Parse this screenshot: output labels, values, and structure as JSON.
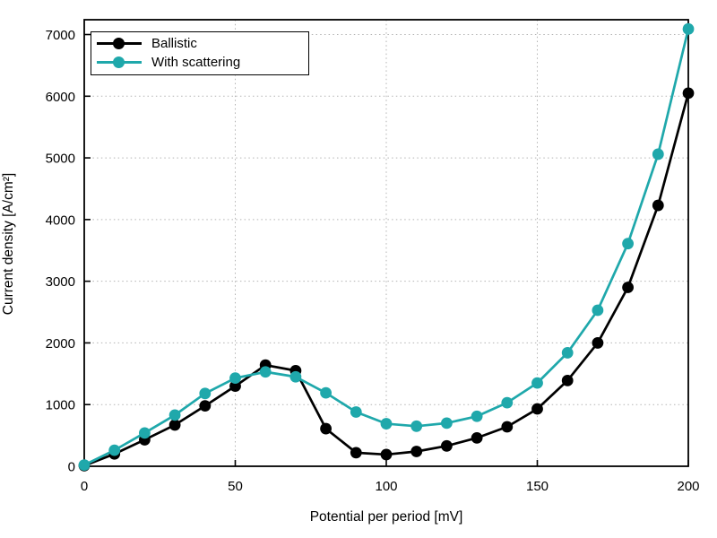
{
  "chart_data": {
    "type": "line",
    "title": "",
    "xlabel": "Potential per period [mV]",
    "ylabel": "Current density [A/cm²]",
    "x": [
      0,
      10,
      20,
      30,
      40,
      50,
      60,
      70,
      80,
      90,
      100,
      110,
      120,
      130,
      140,
      150,
      160,
      170,
      180,
      190,
      200
    ],
    "series": [
      {
        "name": "Ballistic",
        "color": "#000000",
        "marker": "circle",
        "values": [
          10,
          200,
          430,
          670,
          980,
          1300,
          1640,
          1550,
          610,
          220,
          190,
          240,
          330,
          460,
          640,
          930,
          1390,
          2000,
          2900,
          4230,
          6050
        ]
      },
      {
        "name": "With scattering",
        "color": "#1fa8ab",
        "marker": "circle",
        "values": [
          20,
          260,
          540,
          830,
          1180,
          1430,
          1530,
          1450,
          1190,
          880,
          690,
          650,
          700,
          810,
          1030,
          1350,
          1840,
          2530,
          3610,
          5060,
          7090
        ]
      }
    ],
    "xlim": [
      0,
      200
    ],
    "ylim": [
      0,
      7240
    ],
    "xticks": [
      0,
      50,
      100,
      150,
      200
    ],
    "yticks": [
      0,
      1000,
      2000,
      3000,
      4000,
      5000,
      6000,
      7000
    ],
    "grid": true,
    "grid_color": "#b3b3b3",
    "axis_color": "#000000",
    "legend_position": "top-left"
  }
}
